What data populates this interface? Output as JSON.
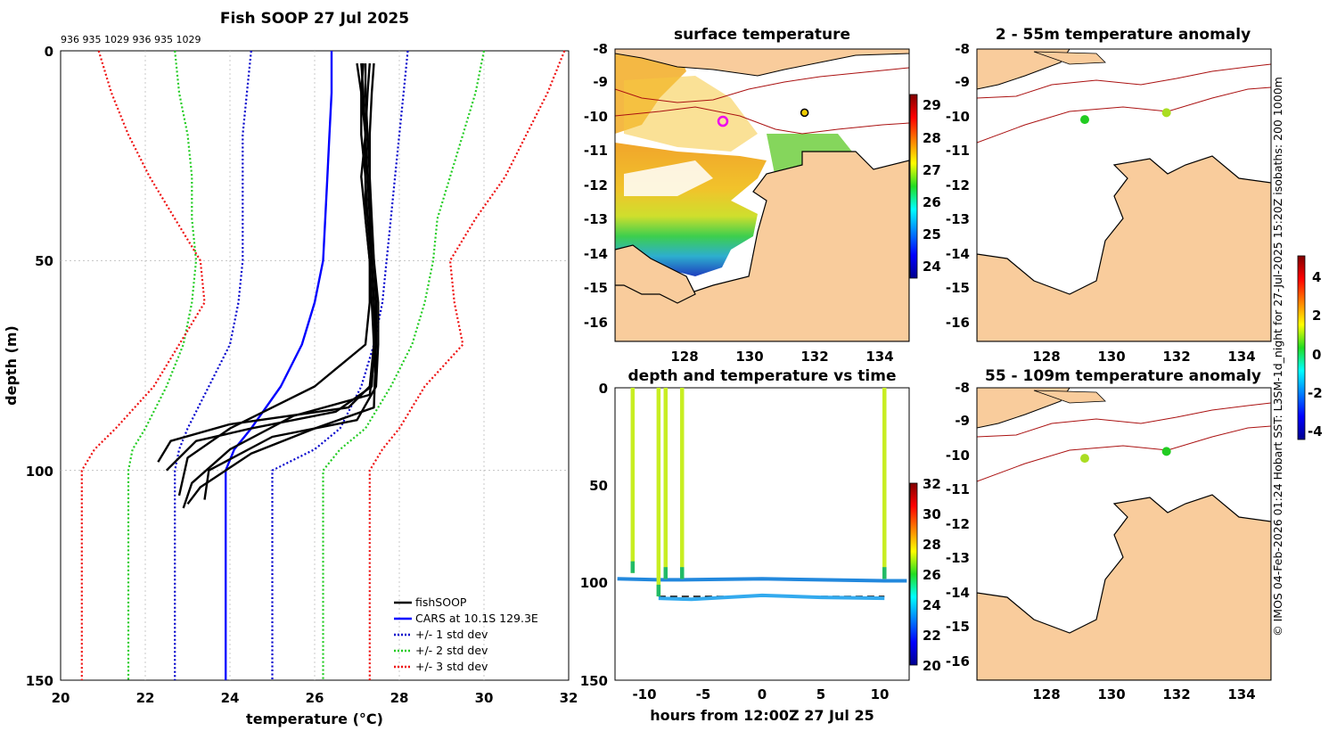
{
  "colors": {
    "fishsoop": "#000000",
    "cars": "#0000ff",
    "std1": "#0000cc",
    "std2": "#22cc22",
    "std3": "#ee1111",
    "land": "#f9cc9c",
    "isobath": "#aa1111"
  },
  "chart_data": [
    {
      "type": "line",
      "id": "profile",
      "title": "Fish SOOP 27 Jul 2025",
      "xlabel": "temperature (°C)",
      "ylabel": "depth (m)",
      "xlim": [
        20,
        32
      ],
      "ylim": [
        150,
        0
      ],
      "x_ticks": [
        "20",
        "22",
        "24",
        "26",
        "28",
        "30",
        "32"
      ],
      "y_ticks": [
        "0",
        "50",
        "100",
        "150"
      ],
      "top_note": "936 935 1029 936 935 1029",
      "legend": [
        "fishSOOP",
        "CARS at 10.1S 129.3E",
        "+/- 1 std dev",
        "+/- 2 std dev",
        "+/- 3 std dev"
      ],
      "series": [
        {
          "name": "CARS",
          "t": [
            26.4,
            26.4,
            26.35,
            26.3,
            26.25,
            26.2,
            26.0,
            25.7,
            25.2,
            24.5,
            24.1,
            23.9,
            23.9,
            23.9,
            23.9
          ],
          "z": [
            0,
            10,
            20,
            30,
            40,
            50,
            60,
            70,
            80,
            90,
            95,
            100,
            110,
            130,
            150
          ]
        },
        {
          "name": "std1_low",
          "t": [
            24.5,
            24.4,
            24.3,
            24.3,
            24.3,
            24.3,
            24.2,
            24.0,
            23.5,
            23.0,
            22.8,
            22.7,
            22.7,
            22.7,
            22.7
          ],
          "z": [
            0,
            10,
            20,
            30,
            40,
            50,
            60,
            70,
            80,
            90,
            95,
            100,
            110,
            130,
            150
          ]
        },
        {
          "name": "std1_high",
          "t": [
            28.2,
            28.1,
            28.0,
            27.9,
            27.8,
            27.7,
            27.6,
            27.4,
            27.1,
            26.6,
            26.0,
            25.0,
            25.0,
            25.0,
            25.0
          ],
          "z": [
            0,
            10,
            20,
            30,
            40,
            50,
            60,
            70,
            80,
            90,
            95,
            100,
            110,
            130,
            150
          ]
        },
        {
          "name": "std2_low",
          "t": [
            22.7,
            22.8,
            23.0,
            23.1,
            23.1,
            23.2,
            23.1,
            22.9,
            22.5,
            22.0,
            21.7,
            21.6,
            21.6,
            21.6,
            21.6
          ],
          "z": [
            0,
            10,
            20,
            30,
            40,
            50,
            60,
            70,
            80,
            90,
            95,
            100,
            110,
            130,
            150
          ]
        },
        {
          "name": "std2_high",
          "t": [
            30.0,
            29.8,
            29.5,
            29.2,
            28.9,
            28.8,
            28.6,
            28.3,
            27.8,
            27.2,
            26.6,
            26.2,
            26.2,
            26.2,
            26.2
          ],
          "z": [
            0,
            10,
            20,
            30,
            40,
            50,
            60,
            70,
            80,
            90,
            95,
            100,
            110,
            130,
            150
          ]
        },
        {
          "name": "std3_low",
          "t": [
            20.9,
            21.2,
            21.6,
            22.1,
            22.7,
            23.3,
            23.4,
            22.8,
            22.2,
            21.3,
            20.8,
            20.5,
            20.5,
            20.5,
            20.5
          ],
          "z": [
            0,
            10,
            20,
            30,
            40,
            50,
            60,
            70,
            80,
            90,
            95,
            100,
            110,
            130,
            150
          ]
        },
        {
          "name": "std3_high",
          "t": [
            31.9,
            31.5,
            31.0,
            30.5,
            29.8,
            29.2,
            29.3,
            29.5,
            28.6,
            28.0,
            27.6,
            27.3,
            27.3,
            27.3,
            27.3
          ],
          "z": [
            0,
            10,
            20,
            30,
            40,
            50,
            60,
            70,
            80,
            90,
            95,
            100,
            110,
            130,
            150
          ]
        },
        {
          "name": "fish1",
          "t": [
            27.1,
            27.15,
            27.2,
            27.25,
            27.3,
            27.35,
            27.4,
            27.4,
            27.3,
            26.8,
            24.0,
            22.6,
            22.3
          ],
          "z": [
            3,
            10,
            20,
            30,
            40,
            50,
            60,
            70,
            80,
            85,
            89,
            93,
            98
          ]
        },
        {
          "name": "fish2",
          "t": [
            27.0,
            27.1,
            27.1,
            27.2,
            27.2,
            27.3,
            27.35,
            27.4,
            27.35,
            26.5,
            24.5,
            23.2,
            22.5
          ],
          "z": [
            3,
            10,
            20,
            30,
            40,
            50,
            60,
            70,
            80,
            86,
            90,
            93,
            100
          ]
        },
        {
          "name": "fish3",
          "t": [
            27.2,
            27.2,
            27.25,
            27.3,
            27.35,
            27.4,
            27.45,
            27.45,
            27.3,
            25.5,
            24.0,
            23.1,
            22.9
          ],
          "z": [
            3,
            10,
            20,
            30,
            40,
            50,
            60,
            70,
            82,
            87,
            95,
            103,
            109
          ]
        },
        {
          "name": "fish4",
          "t": [
            27.3,
            27.25,
            27.2,
            27.2,
            27.25,
            27.35,
            27.4,
            27.45,
            27.4,
            26.0,
            24.5,
            23.3,
            23.0
          ],
          "z": [
            3,
            10,
            20,
            30,
            40,
            50,
            60,
            70,
            85,
            90,
            96,
            104,
            108
          ]
        },
        {
          "name": "fish5",
          "t": [
            27.4,
            27.35,
            27.3,
            27.3,
            27.3,
            27.4,
            27.5,
            27.5,
            27.45,
            27.0,
            25.0,
            23.5,
            23.4
          ],
          "z": [
            3,
            10,
            20,
            30,
            40,
            50,
            60,
            70,
            80,
            88,
            92,
            100,
            107
          ]
        },
        {
          "name": "fish6",
          "t": [
            27.15,
            27.1,
            27.2,
            27.1,
            27.2,
            27.3,
            27.3,
            27.2,
            26.0,
            25.0,
            24.0,
            23.0,
            22.8
          ],
          "z": [
            3,
            10,
            20,
            30,
            40,
            50,
            60,
            70,
            80,
            85,
            90,
            97,
            106
          ]
        }
      ]
    },
    {
      "type": "heatmap",
      "id": "surface",
      "title": "surface temperature",
      "x_ticks": [
        "128",
        "130",
        "132",
        "134"
      ],
      "y_ticks": [
        "-8",
        "-9",
        "-10",
        "-11",
        "-12",
        "-13",
        "-14",
        "-15",
        "-16"
      ],
      "xlim": [
        126,
        135
      ],
      "ylim": [
        -16.5,
        -8
      ],
      "colorbar_ticks": [
        "29",
        "28",
        "27",
        "26",
        "25",
        "24"
      ],
      "colorbar_range": [
        23.5,
        29.5
      ],
      "markers": [
        {
          "lon": 129.3,
          "lat": -10.1,
          "kind": "magenta-ring"
        },
        {
          "lon": 131.8,
          "lat": -9.85,
          "kind": "yellow-dot"
        }
      ]
    },
    {
      "type": "scatter",
      "id": "depthtime",
      "title": "depth and temperature vs time",
      "xlabel": "hours from 12:00Z 27 Jul 25",
      "x_ticks": [
        "-10",
        "-5",
        "0",
        "5",
        "10"
      ],
      "y_ticks": [
        "0",
        "50",
        "100",
        "150"
      ],
      "xlim": [
        -12.5,
        12.5
      ],
      "ylim": [
        150,
        0
      ],
      "colorbar_ticks": [
        "32",
        "30",
        "28",
        "26",
        "24",
        "22",
        "20"
      ],
      "colorbar_range": [
        20,
        32
      ],
      "casts_hours": [
        -11,
        -8.8,
        -8.2,
        -6.8,
        10.4
      ],
      "bottom_depth": 107,
      "gear_depth": 98
    },
    {
      "type": "heatmap",
      "id": "anom1",
      "title": "2 - 55m temperature anomaly",
      "x_ticks": [
        "128",
        "130",
        "132",
        "134"
      ],
      "y_ticks": [
        "-8",
        "-9",
        "-10",
        "-11",
        "-12",
        "-13",
        "-14",
        "-15",
        "-16"
      ],
      "xlim": [
        126,
        135
      ],
      "ylim": [
        -16.5,
        -8
      ],
      "points": [
        {
          "lon": 129.3,
          "lat": -10.05,
          "anomaly": 0.2
        },
        {
          "lon": 131.8,
          "lat": -9.85,
          "anomaly": 1.5
        }
      ]
    },
    {
      "type": "heatmap",
      "id": "anom2",
      "title": "55 - 109m temperature anomaly",
      "x_ticks": [
        "128",
        "130",
        "132",
        "134"
      ],
      "y_ticks": [
        "-8",
        "-9",
        "-10",
        "-11",
        "-12",
        "-13",
        "-14",
        "-15",
        "-16"
      ],
      "xlim": [
        126,
        135
      ],
      "ylim": [
        -16.5,
        -8
      ],
      "points": [
        {
          "lon": 129.3,
          "lat": -10.05,
          "anomaly": 1.5
        },
        {
          "lon": 131.8,
          "lat": -9.85,
          "anomaly": 0.3
        }
      ],
      "colorbar_ticks": [
        "4",
        "2",
        "0",
        "-2",
        "-4"
      ],
      "colorbar_range": [
        -4.5,
        5
      ]
    }
  ],
  "credit": "© IMOS 04-Feb-2026 01:24 Hobart SST: L3SM-1d_night for 27-Jul-2025 15:20Z isobaths: 200  1000m"
}
